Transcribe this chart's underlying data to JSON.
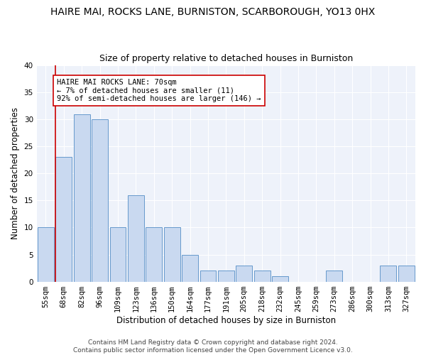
{
  "title": "HAIRE MAI, ROCKS LANE, BURNISTON, SCARBOROUGH, YO13 0HX",
  "subtitle": "Size of property relative to detached houses in Burniston",
  "xlabel": "Distribution of detached houses by size in Burniston",
  "ylabel": "Number of detached properties",
  "categories": [
    "55sqm",
    "68sqm",
    "82sqm",
    "96sqm",
    "109sqm",
    "123sqm",
    "136sqm",
    "150sqm",
    "164sqm",
    "177sqm",
    "191sqm",
    "205sqm",
    "218sqm",
    "232sqm",
    "245sqm",
    "259sqm",
    "273sqm",
    "286sqm",
    "300sqm",
    "313sqm",
    "327sqm"
  ],
  "values": [
    10,
    23,
    31,
    30,
    10,
    16,
    10,
    10,
    5,
    2,
    2,
    3,
    2,
    1,
    0,
    0,
    2,
    0,
    0,
    3,
    3
  ],
  "bar_color": "#c9d9f0",
  "bar_edge_color": "#6699cc",
  "annotation_text": "HAIRE MAI ROCKS LANE: 70sqm\n← 7% of detached houses are smaller (11)\n92% of semi-detached houses are larger (146) →",
  "vline_color": "#cc0000",
  "box_color": "#cc0000",
  "ylim": [
    0,
    40
  ],
  "yticks": [
    0,
    5,
    10,
    15,
    20,
    25,
    30,
    35,
    40
  ],
  "background_color": "#eef2fa",
  "footer_line1": "Contains HM Land Registry data © Crown copyright and database right 2024.",
  "footer_line2": "Contains public sector information licensed under the Open Government Licence v3.0.",
  "title_fontsize": 10,
  "subtitle_fontsize": 9,
  "axis_label_fontsize": 8.5,
  "tick_fontsize": 7.5,
  "annotation_fontsize": 7.5,
  "footer_fontsize": 6.5
}
